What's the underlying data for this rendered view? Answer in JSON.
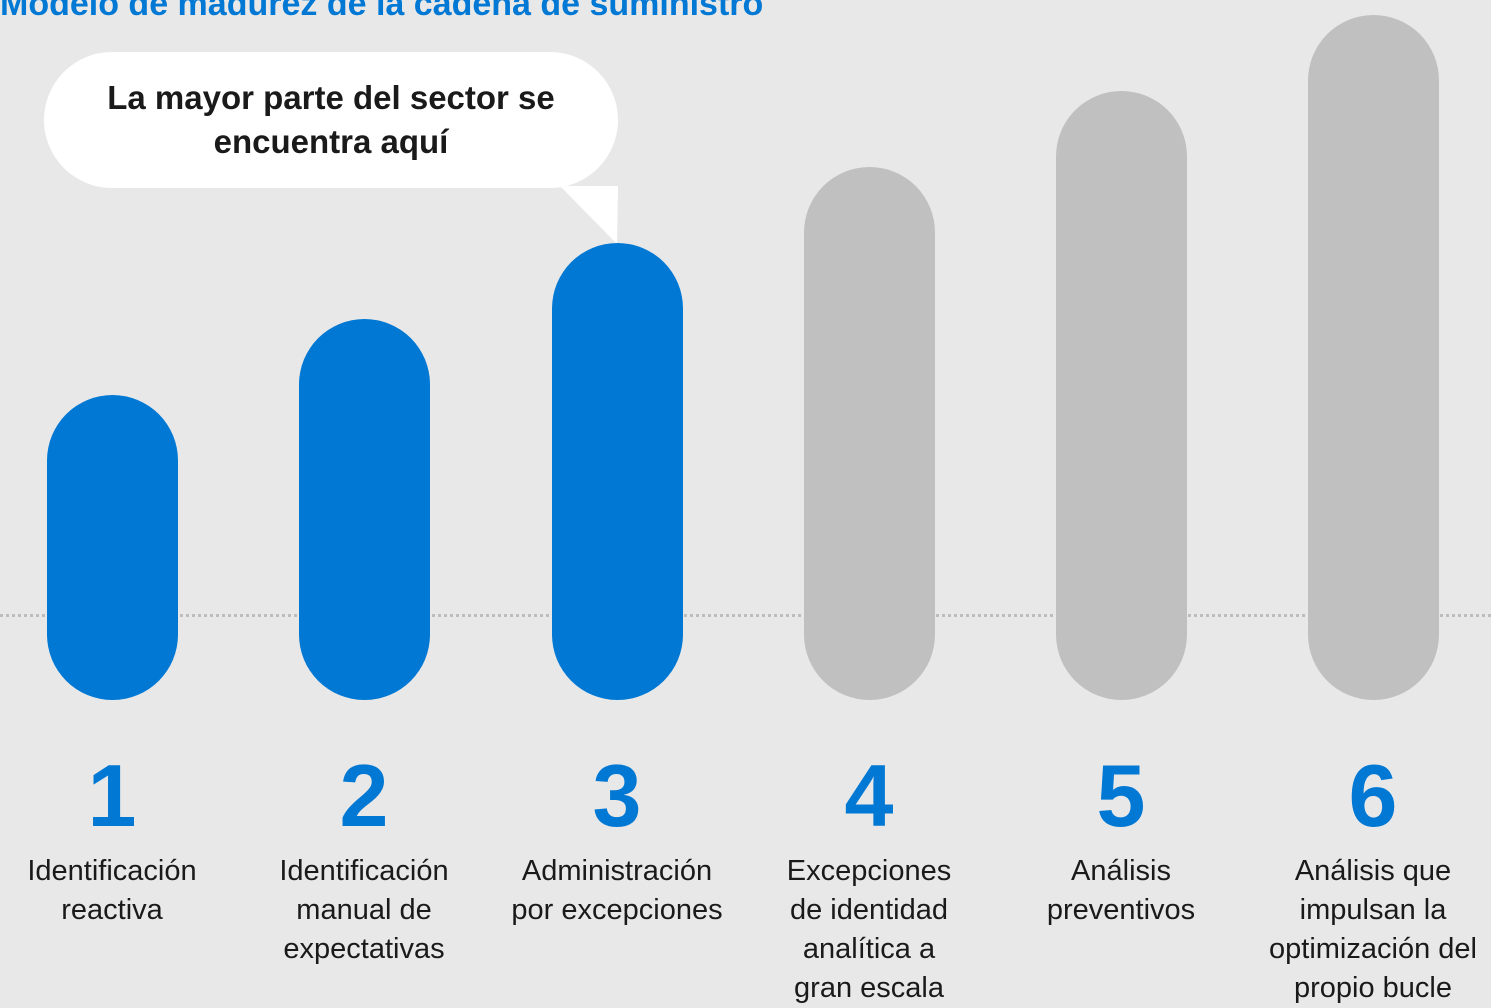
{
  "title": "Modelo de madurez de la cadena de suministro",
  "callout": {
    "text": "La mayor parte del sector se encuentra aquí"
  },
  "colors": {
    "active": "#0078d4",
    "inactive": "#c0c0c0",
    "accent_text": "#0078d4"
  },
  "stages": [
    {
      "number": "1",
      "label": "Identificación\nreactiva",
      "level": 1,
      "active": true
    },
    {
      "number": "2",
      "label": "Identificación\nmanual de\nexpectativas",
      "level": 2,
      "active": true
    },
    {
      "number": "3",
      "label": "Administración\npor excepciones",
      "level": 3,
      "active": true
    },
    {
      "number": "4",
      "label": "Excepciones\nde identidad\nanalítica a\ngran escala",
      "level": 4,
      "active": false
    },
    {
      "number": "5",
      "label": "Análisis\npreventivos",
      "level": 5,
      "active": false
    },
    {
      "number": "6",
      "label": "Análisis que\nimpulsan la\noptimización del\npropio bucle",
      "level": 6,
      "active": false
    }
  ]
}
